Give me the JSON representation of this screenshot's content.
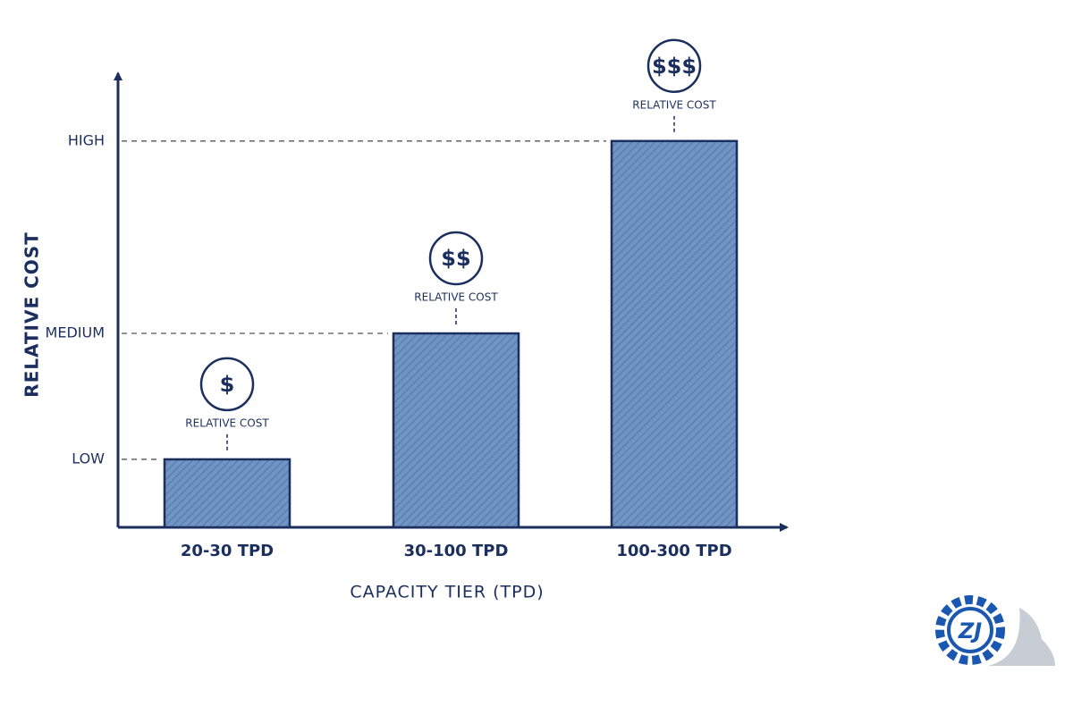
{
  "chart_data": {
    "type": "bar",
    "x_label": "CAPACITY TIER (TPD)",
    "y_label": "RELATIVE COST",
    "categories": [
      "20-30 TPD",
      "30-100 TPD",
      "100-300 TPD"
    ],
    "values": [
      17.6,
      50.2,
      100
    ],
    "color": "#7094c4",
    "ylim": [
      0,
      118
    ],
    "yticks": [
      {
        "value": 17.6,
        "label": "LOW"
      },
      {
        "value": 50.2,
        "label": "MEDIUM"
      },
      {
        "value": 100,
        "label": "HIGH"
      }
    ],
    "grid": true,
    "annotations": [
      {
        "symbol": "$",
        "label": "RELATIVE COST"
      },
      {
        "symbol": "$$",
        "label": "RELATIVE COST"
      },
      {
        "symbol": "$$$",
        "label": "RELATIVE COST"
      }
    ],
    "logo": "ZJ"
  }
}
